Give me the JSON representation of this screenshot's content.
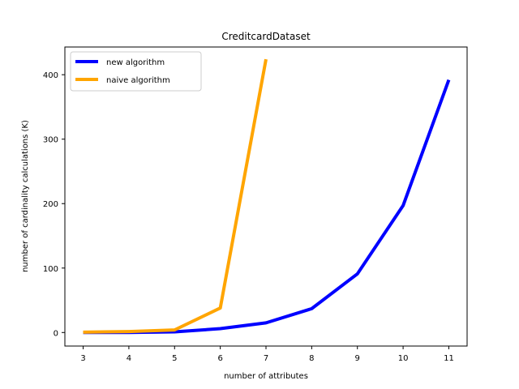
{
  "chart_data": {
    "type": "line",
    "title": "CreditcardDataset",
    "xlabel": "number of attributes",
    "ylabel": "number of cardinality calculations (K)",
    "xlim": [
      2.6,
      11.4
    ],
    "ylim": [
      -21,
      443
    ],
    "xticks": [
      3,
      4,
      5,
      6,
      7,
      8,
      9,
      10,
      11
    ],
    "yticks": [
      0,
      100,
      200,
      300,
      400
    ],
    "grid": false,
    "legend_position": "top-left",
    "series": [
      {
        "name": "new algorithm",
        "color": "#0000ff",
        "x": [
          3,
          4,
          5,
          6,
          7,
          8,
          9,
          10,
          11
        ],
        "y": [
          0,
          0,
          1,
          6,
          15,
          37,
          91,
          197,
          392
        ]
      },
      {
        "name": "naive algorithm",
        "color": "#ffa500",
        "x": [
          3,
          4,
          5,
          6,
          7
        ],
        "y": [
          0.5,
          1.5,
          4,
          38,
          424
        ]
      }
    ]
  }
}
